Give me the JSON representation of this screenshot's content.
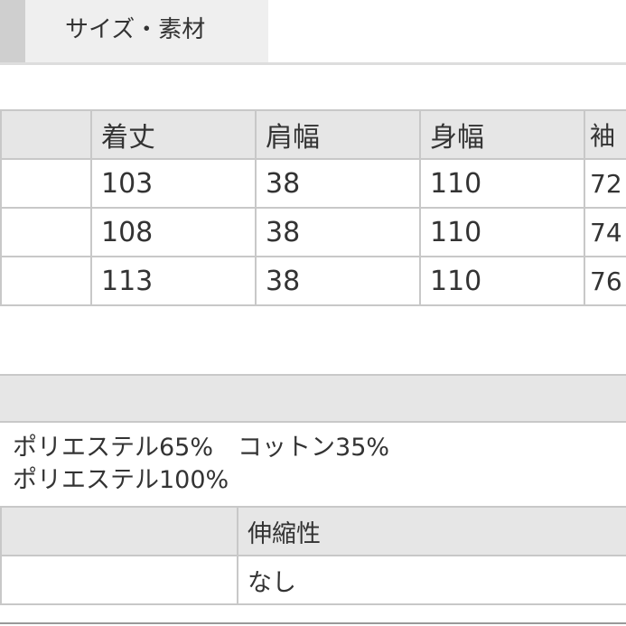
{
  "tab": {
    "label": "サイズ・素材"
  },
  "size_table": {
    "headers": [
      "",
      "着丈",
      "肩幅",
      "身幅",
      "袖"
    ],
    "rows": [
      [
        "",
        "103",
        "38",
        "110",
        "72"
      ],
      [
        "",
        "108",
        "38",
        "110",
        "74"
      ],
      [
        "",
        "113",
        "38",
        "110",
        "76"
      ]
    ]
  },
  "material": {
    "lines": [
      "ポリエステル65%　コットン35%",
      "ポリエステル100%"
    ]
  },
  "stretch_table": {
    "header": [
      "",
      "伸縮性"
    ],
    "row": [
      "",
      "なし"
    ]
  }
}
